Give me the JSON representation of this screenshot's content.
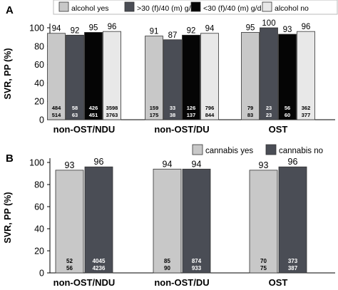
{
  "chart_data": [
    {
      "panel_label": "A",
      "type": "bar",
      "ylabel": "SVR, PP (%)",
      "ylim": [
        0,
        100
      ],
      "yticks": [
        0,
        20,
        40,
        60,
        80,
        100
      ],
      "categories": [
        "non-OST/NDU",
        "non-OST/DU",
        "OST"
      ],
      "legend_position": "top",
      "series": [
        {
          "name": "alcohol yes",
          "color": "#c8c8c8",
          "values": [
            94,
            91,
            95
          ],
          "numerators": [
            "484",
            "159",
            "79"
          ],
          "denominators": [
            "514",
            "175",
            "83"
          ]
        },
        {
          "name": ">30 (f)/40 (m) g/d",
          "color": "#4a4d55",
          "values": [
            92,
            87,
            100
          ],
          "numerators": [
            "58",
            "33",
            "23"
          ],
          "denominators": [
            "63",
            "38",
            "23"
          ]
        },
        {
          "name": "<30 (f)/40 (m) g/d",
          "color": "#050505",
          "values": [
            95,
            92,
            93
          ],
          "numerators": [
            "426",
            "126",
            "56"
          ],
          "denominators": [
            "451",
            "137",
            "60"
          ]
        },
        {
          "name": "alcohol no",
          "color": "#e8e8e8",
          "values": [
            96,
            94,
            96
          ],
          "numerators": [
            "3598",
            "796",
            "362"
          ],
          "denominators": [
            "3763",
            "844",
            "377"
          ]
        }
      ]
    },
    {
      "panel_label": "B",
      "type": "bar",
      "ylabel": "SVR, PP (%)",
      "ylim": [
        0,
        100
      ],
      "yticks": [
        0,
        20,
        40,
        60,
        80,
        100
      ],
      "categories": [
        "non-OST/NDU",
        "non-OST/DU",
        "OST"
      ],
      "legend_position": "top-right",
      "series": [
        {
          "name": "cannabis yes",
          "color": "#c8c8c8",
          "values": [
            93,
            94,
            93
          ],
          "numerators": [
            "52",
            "85",
            "70"
          ],
          "denominators": [
            "56",
            "90",
            "75"
          ]
        },
        {
          "name": "cannabis no",
          "color": "#4a4d55",
          "values": [
            96,
            94,
            96
          ],
          "numerators": [
            "4045",
            "874",
            "373"
          ],
          "denominators": [
            "4236",
            "933",
            "387"
          ]
        }
      ]
    }
  ]
}
